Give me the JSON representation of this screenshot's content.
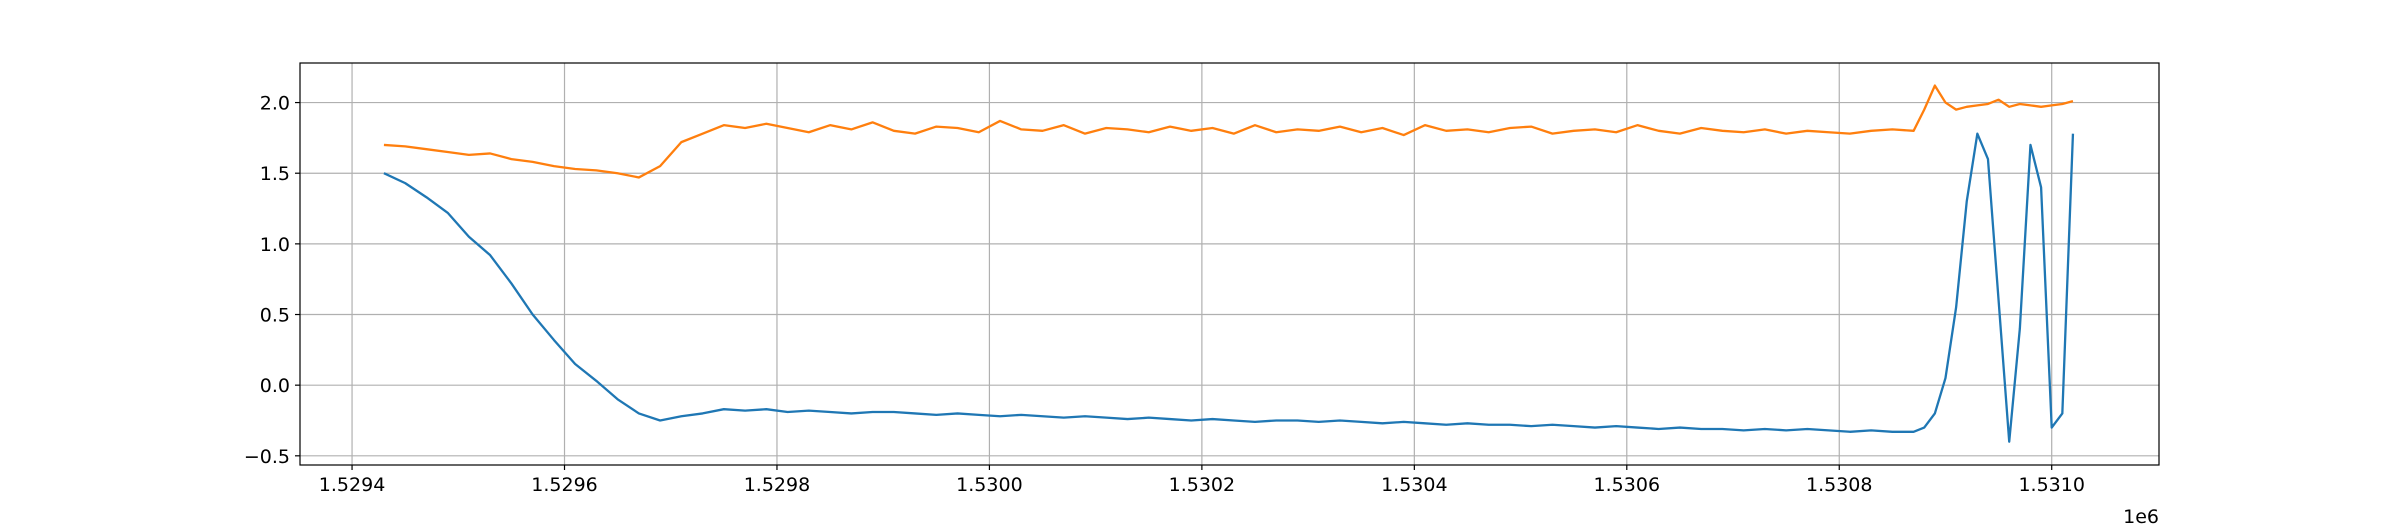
{
  "chart_data": {
    "type": "line",
    "x_offset_label": "1e6",
    "x": [
      1529430,
      1529450,
      1529470,
      1529490,
      1529510,
      1529530,
      1529550,
      1529570,
      1529590,
      1529610,
      1529630,
      1529650,
      1529670,
      1529690,
      1529710,
      1529730,
      1529750,
      1529770,
      1529790,
      1529810,
      1529830,
      1529850,
      1529870,
      1529890,
      1529910,
      1529930,
      1529950,
      1529970,
      1529990,
      1530010,
      1530030,
      1530050,
      1530070,
      1530090,
      1530110,
      1530130,
      1530150,
      1530170,
      1530190,
      1530210,
      1530230,
      1530250,
      1530270,
      1530290,
      1530310,
      1530330,
      1530350,
      1530370,
      1530390,
      1530410,
      1530430,
      1530450,
      1530470,
      1530490,
      1530510,
      1530530,
      1530550,
      1530570,
      1530590,
      1530610,
      1530630,
      1530650,
      1530670,
      1530690,
      1530710,
      1530730,
      1530750,
      1530770,
      1530790,
      1530810,
      1530830,
      1530850,
      1530870,
      1530880,
      1530890,
      1530900,
      1530910,
      1530920,
      1530930,
      1530940,
      1530950,
      1530960,
      1530970,
      1530980,
      1530990,
      1531000,
      1531010,
      1531020
    ],
    "series": [
      {
        "color": "#1f77b4",
        "values": [
          1.5,
          1.43,
          1.33,
          1.22,
          1.05,
          0.92,
          0.72,
          0.5,
          0.32,
          0.15,
          0.03,
          -0.1,
          -0.2,
          -0.25,
          -0.22,
          -0.2,
          -0.17,
          -0.18,
          -0.17,
          -0.19,
          -0.18,
          -0.19,
          -0.2,
          -0.19,
          -0.19,
          -0.2,
          -0.21,
          -0.2,
          -0.21,
          -0.22,
          -0.21,
          -0.22,
          -0.23,
          -0.22,
          -0.23,
          -0.24,
          -0.23,
          -0.24,
          -0.25,
          -0.24,
          -0.25,
          -0.26,
          -0.25,
          -0.25,
          -0.26,
          -0.25,
          -0.26,
          -0.27,
          -0.26,
          -0.27,
          -0.28,
          -0.27,
          -0.28,
          -0.28,
          -0.29,
          -0.28,
          -0.29,
          -0.3,
          -0.29,
          -0.3,
          -0.31,
          -0.3,
          -0.31,
          -0.31,
          -0.32,
          -0.31,
          -0.32,
          -0.31,
          -0.32,
          -0.33,
          -0.32,
          -0.33,
          -0.33,
          -0.3,
          -0.2,
          0.05,
          0.55,
          1.3,
          1.78,
          1.6,
          0.6,
          -0.4,
          0.4,
          1.7,
          1.4,
          -0.3,
          -0.2,
          1.78
        ]
      },
      {
        "color": "#ff7f0e",
        "values": [
          1.7,
          1.69,
          1.67,
          1.65,
          1.63,
          1.64,
          1.6,
          1.58,
          1.55,
          1.53,
          1.52,
          1.5,
          1.47,
          1.55,
          1.72,
          1.78,
          1.84,
          1.82,
          1.85,
          1.82,
          1.79,
          1.84,
          1.81,
          1.86,
          1.8,
          1.78,
          1.83,
          1.82,
          1.79,
          1.87,
          1.81,
          1.8,
          1.84,
          1.78,
          1.82,
          1.81,
          1.79,
          1.83,
          1.8,
          1.82,
          1.78,
          1.84,
          1.79,
          1.81,
          1.8,
          1.83,
          1.79,
          1.82,
          1.77,
          1.84,
          1.8,
          1.81,
          1.79,
          1.82,
          1.83,
          1.78,
          1.8,
          1.81,
          1.79,
          1.84,
          1.8,
          1.78,
          1.82,
          1.8,
          1.79,
          1.81,
          1.78,
          1.8,
          1.79,
          1.78,
          1.8,
          1.81,
          1.8,
          1.95,
          2.12,
          2.0,
          1.95,
          1.97,
          1.98,
          1.99,
          2.02,
          1.97,
          1.99,
          1.98,
          1.97,
          1.98,
          1.99,
          2.01
        ]
      }
    ],
    "xlim": [
      1529351,
      1531101
    ],
    "ylim": [
      -0.565,
      2.28
    ],
    "xticks": [
      {
        "value": 1529400,
        "label": "1.5294"
      },
      {
        "value": 1529600,
        "label": "1.5296"
      },
      {
        "value": 1529800,
        "label": "1.5298"
      },
      {
        "value": 1530000,
        "label": "1.5300"
      },
      {
        "value": 1530200,
        "label": "1.5302"
      },
      {
        "value": 1530400,
        "label": "1.5304"
      },
      {
        "value": 1530600,
        "label": "1.5306"
      },
      {
        "value": 1530800,
        "label": "1.5308"
      },
      {
        "value": 1531000,
        "label": "1.5310"
      }
    ],
    "yticks": [
      {
        "value": -0.5,
        "label": "−0.5"
      },
      {
        "value": 0,
        "label": "0.0"
      },
      0.5,
      {
        "value": 1,
        "label": "1.0"
      },
      1.5,
      {
        "value": 2,
        "label": "2.0"
      }
    ],
    "grid": true
  }
}
